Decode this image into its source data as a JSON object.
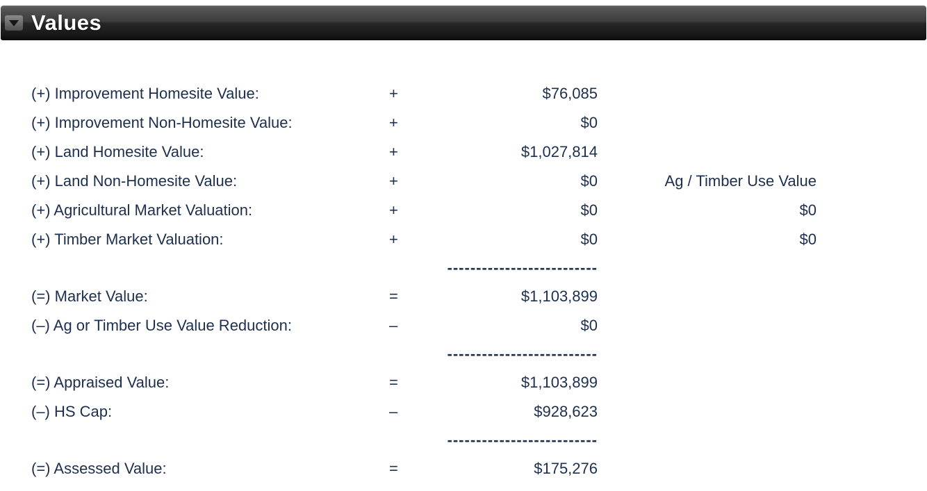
{
  "header": {
    "title": "Values"
  },
  "separator": "--------------------------",
  "rows": [
    {
      "label": "(+) Improvement Homesite Value:",
      "op": "+",
      "value": "$76,085",
      "extra": ""
    },
    {
      "label": "(+) Improvement Non-Homesite Value:",
      "op": "+",
      "value": "$0",
      "extra": ""
    },
    {
      "label": "(+) Land Homesite Value:",
      "op": "+",
      "value": "$1,027,814",
      "extra": ""
    },
    {
      "label": "(+) Land Non-Homesite Value:",
      "op": "+",
      "value": "$0",
      "extra": "Ag / Timber Use Value"
    },
    {
      "label": "(+) Agricultural Market Valuation:",
      "op": "+",
      "value": "$0",
      "extra": "$0"
    },
    {
      "label": "(+) Timber Market Valuation:",
      "op": "+",
      "value": "$0",
      "extra": "$0"
    },
    {
      "type": "separator"
    },
    {
      "label": "(=) Market Value:",
      "op": "=",
      "value": "$1,103,899",
      "extra": ""
    },
    {
      "label": "(–) Ag or Timber Use Value Reduction:",
      "op": "–",
      "value": "$0",
      "extra": ""
    },
    {
      "type": "separator"
    },
    {
      "label": "(=) Appraised Value:",
      "op": "=",
      "value": "$1,103,899",
      "extra": ""
    },
    {
      "label": "(–) HS Cap:",
      "op": "–",
      "value": "$928,623",
      "extra": ""
    },
    {
      "type": "separator"
    },
    {
      "label": "(=) Assessed Value:",
      "op": "=",
      "value": "$175,276",
      "extra": ""
    }
  ],
  "colors": {
    "text": "#1d2f4e",
    "header_top": "#6b6b6b",
    "header_bottom": "#0c0c0c"
  }
}
